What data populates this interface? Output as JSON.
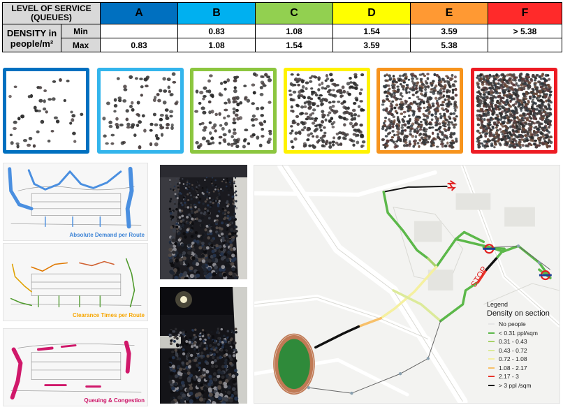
{
  "los_table": {
    "header_label": "LEVEL OF SERVICE (QUEUES)",
    "levels": [
      {
        "label": "A",
        "color": "#0070c0"
      },
      {
        "label": "B",
        "color": "#00b0f0"
      },
      {
        "label": "C",
        "color": "#92d050"
      },
      {
        "label": "D",
        "color": "#ffff00"
      },
      {
        "label": "E",
        "color": "#ff9933"
      },
      {
        "label": "F",
        "color": "#ff2a2a"
      }
    ],
    "density_label": "DENSITY in people/m²",
    "min_label": "Min",
    "max_label": "Max",
    "min_values": [
      "",
      "0.83",
      "1.08",
      "1.54",
      "3.59",
      "> 5.38"
    ],
    "max_values": [
      "0.83",
      "1.08",
      "1.54",
      "3.59",
      "5.38",
      ""
    ]
  },
  "density_squares": [
    {
      "level": "A",
      "border_color": "#0070c0"
    },
    {
      "level": "B",
      "border_color": "#33b5ec"
    },
    {
      "level": "C",
      "border_color": "#8cc63f"
    },
    {
      "level": "D",
      "border_color": "#fff200"
    },
    {
      "level": "E",
      "border_color": "#f7941d"
    },
    {
      "level": "F",
      "border_color": "#ed1c24"
    }
  ],
  "panels": [
    {
      "caption": "Absolute Demand per Route",
      "caption_color": "#3f85d6"
    },
    {
      "caption": "Clearance Times per Route",
      "caption_color": "#f7a600"
    },
    {
      "caption": "Queuing & Congestion",
      "caption_color": "#cc1266"
    }
  ],
  "map": {
    "stop_label": "STOP",
    "legend": {
      "title": "Legend",
      "subtitle": "Density on section",
      "items": [
        {
          "label": "No people",
          "color": "#e6e6e6"
        },
        {
          "label": "< 0.31 ppl/sqm",
          "color": "#5cb84a"
        },
        {
          "label": "0.31 - 0.43",
          "color": "#a8d26a"
        },
        {
          "label": "0.43 - 0.72",
          "color": "#dcea9a"
        },
        {
          "label": "0.72 - 1.08",
          "color": "#f5f0a0"
        },
        {
          "label": "1.08 - 2.17",
          "color": "#f7c06a"
        },
        {
          "label": "2.17 - 3",
          "color": "#e8342a"
        },
        {
          "label": "> 3 ppl /sqm",
          "color": "#111111"
        }
      ]
    }
  }
}
